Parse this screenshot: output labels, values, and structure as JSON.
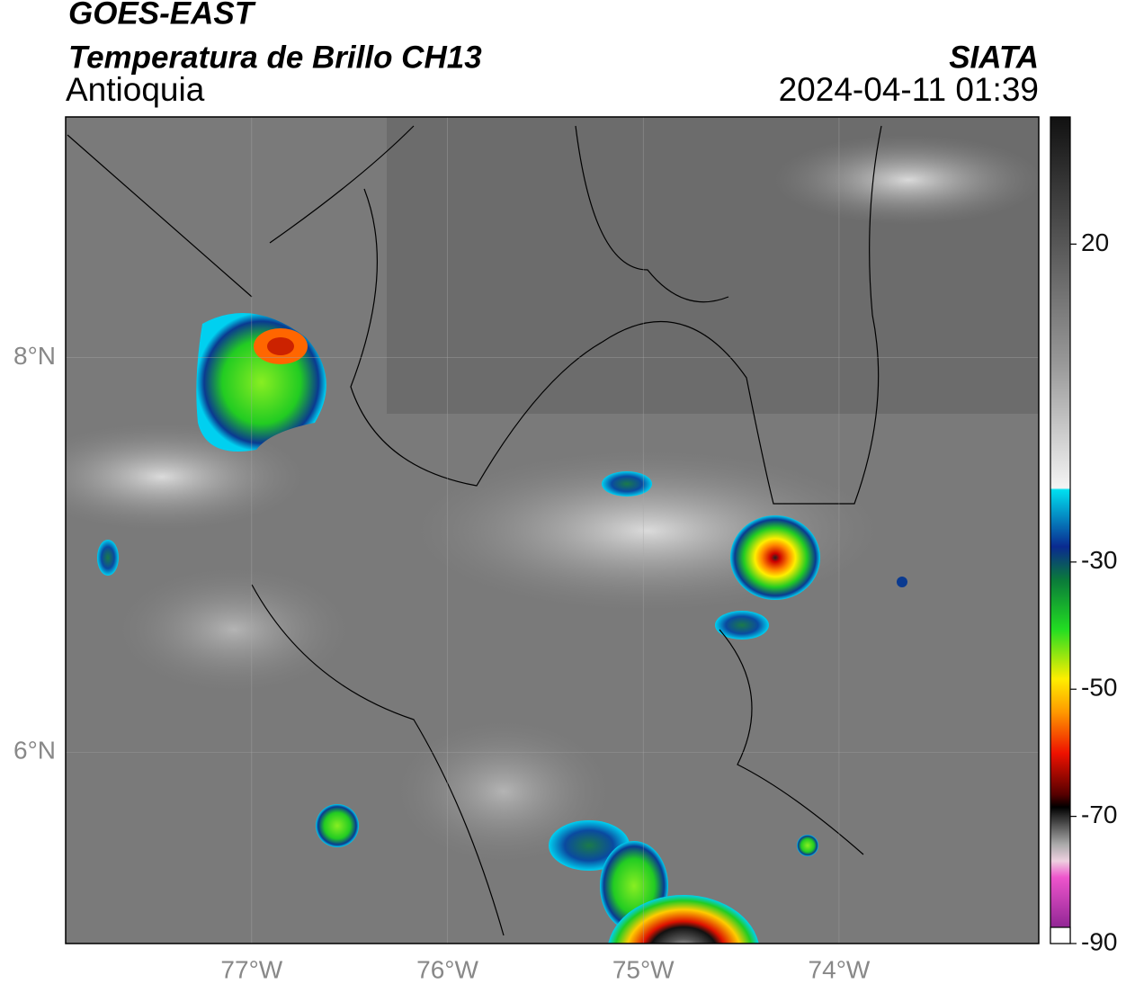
{
  "header": {
    "satellite": "GOES-EAST",
    "product": "Temperatura de Brillo CH13",
    "region": "Antioquia",
    "source": "SIATA",
    "datetime": "2024-04-11 01:39"
  },
  "map": {
    "lon_range": [
      -77.95,
      -72.98
    ],
    "lat_range": [
      5.03,
      9.22
    ],
    "lon_ticks": [
      {
        "value": -77,
        "label": "77°W"
      },
      {
        "value": -76,
        "label": "76°W"
      },
      {
        "value": -75,
        "label": "75°W"
      },
      {
        "value": -74,
        "label": "74°W"
      }
    ],
    "lat_ticks": [
      {
        "value": 8,
        "label": "8°N"
      },
      {
        "value": 6,
        "label": "6°N"
      }
    ]
  },
  "colorbar": {
    "range": [
      -90,
      40
    ],
    "ticks": [
      20,
      -30,
      -50,
      -70,
      -90
    ]
  }
}
